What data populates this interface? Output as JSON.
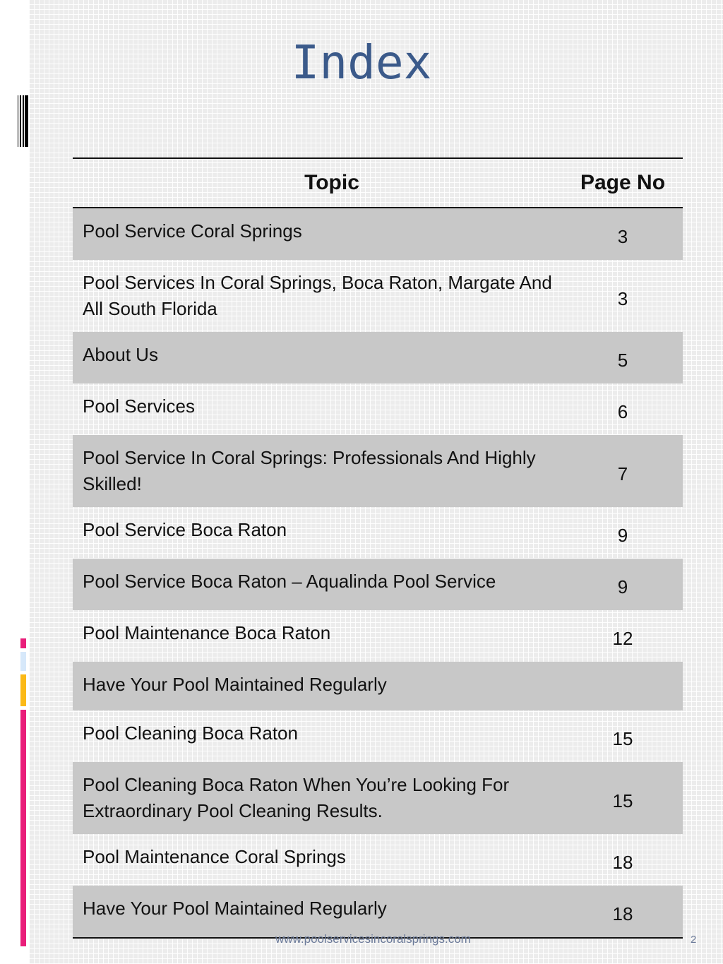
{
  "title": "Index",
  "table": {
    "headers": [
      "Topic",
      "Page No"
    ],
    "rows": [
      {
        "topic": "Pool Service Coral Springs",
        "page": "3"
      },
      {
        "topic": "Pool Services In Coral Springs, Boca Raton, Margate And All South Florida",
        "page": "3"
      },
      {
        "topic": "About Us",
        "page": "5"
      },
      {
        "topic": "Pool Services",
        "page": "6"
      },
      {
        "topic": "Pool Service In Coral Springs: Professionals And Highly Skilled!",
        "page": "7"
      },
      {
        "topic": "Pool Service Boca Raton",
        "page": "9"
      },
      {
        "topic": "Pool Service Boca Raton – Aqualinda Pool Service",
        "page": "9"
      },
      {
        "topic": "Pool Maintenance Boca Raton",
        "page": "12"
      },
      {
        "topic": "Have Your Pool Maintained Regularly",
        "page": ""
      },
      {
        "topic": "Pool Cleaning Boca Raton",
        "page": "15"
      },
      {
        "topic": "Pool Cleaning Boca Raton When You’re Looking For Extraordinary Pool Cleaning Results.",
        "page": "15"
      },
      {
        "topic": "Pool Maintenance Coral Springs",
        "page": "18"
      },
      {
        "topic": "Have Your Pool Maintained Regularly",
        "page": "18"
      }
    ]
  },
  "footer": {
    "url": "www.poolservicesincoralsprings.com",
    "page_number": "2"
  },
  "colors": {
    "title": "#3b5a8a",
    "row_shade": "#c8c8c8",
    "accent_pink": "#e91e7a",
    "accent_blue": "#d6e8fa",
    "accent_orange": "#fbb917"
  }
}
